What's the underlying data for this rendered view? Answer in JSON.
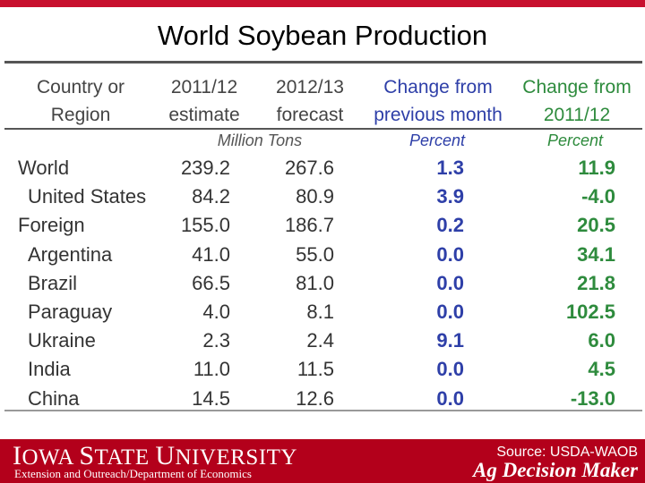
{
  "title": "World Soybean Production",
  "headers": {
    "region": [
      "Country or",
      "Region"
    ],
    "y2011": [
      "2011/12",
      "estimate"
    ],
    "y2012": [
      "2012/13",
      "forecast"
    ],
    "prev_month": [
      "Change from",
      "previous month"
    ],
    "chg_2011": [
      "Change from",
      "2011/12"
    ]
  },
  "units": {
    "tons": "Million Tons",
    "pct_prev": "Percent",
    "pct_2011": "Percent"
  },
  "rows": [
    {
      "name": "World",
      "v1": "239.2",
      "v2": "267.6",
      "v3": "1.3",
      "v4": "11.9"
    },
    {
      "name": "United States",
      "v1": "84.2",
      "v2": "80.9",
      "v3": "3.9",
      "v4": "-4.0"
    },
    {
      "name": "Foreign",
      "v1": "155.0",
      "v2": "186.7",
      "v3": "0.2",
      "v4": "20.5"
    },
    {
      "name": "Argentina",
      "v1": "41.0",
      "v2": "55.0",
      "v3": "0.0",
      "v4": "34.1"
    },
    {
      "name": "Brazil",
      "v1": "66.5",
      "v2": "81.0",
      "v3": "0.0",
      "v4": "21.8"
    },
    {
      "name": "Paraguay",
      "v1": "4.0",
      "v2": "8.1",
      "v3": "0.0",
      "v4": "102.5"
    },
    {
      "name": "Ukraine",
      "v1": "2.3",
      "v2": "2.4",
      "v3": "9.1",
      "v4": "6.0"
    },
    {
      "name": "India",
      "v1": "11.0",
      "v2": "11.5",
      "v3": "0.0",
      "v4": "4.5"
    },
    {
      "name": "China",
      "v1": "14.5",
      "v2": "12.6",
      "v3": "0.0",
      "v4": "-13.0"
    }
  ],
  "footer": {
    "university": "Iowa State University",
    "department": "Extension and Outreach/Department of Economics",
    "source": "Source: USDA-WAOB",
    "brand": "Ag Decision Maker"
  },
  "colors": {
    "header_text": "#444444",
    "prev_month": "#2e3fa8",
    "chg_2011": "#2e8b3d",
    "footer_bg": "#b3001b"
  }
}
